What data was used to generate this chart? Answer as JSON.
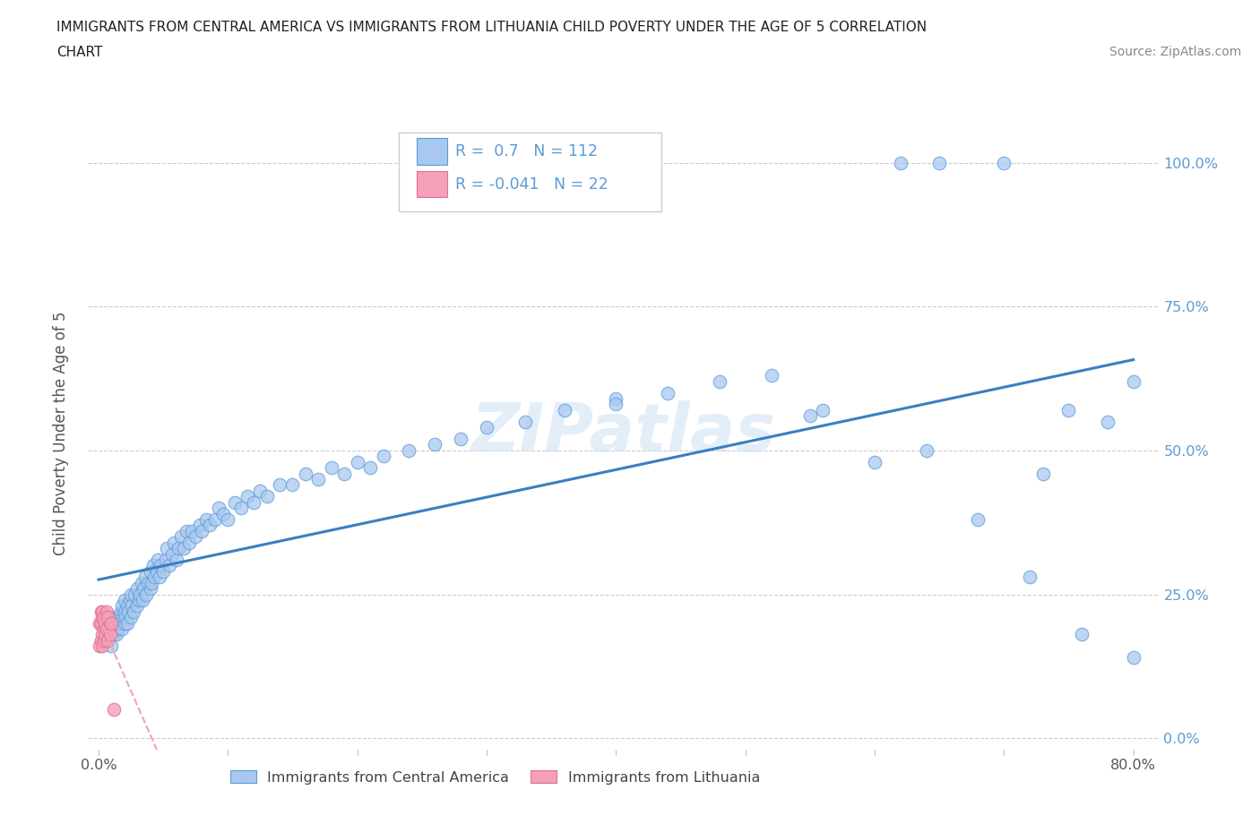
{
  "title_line1": "IMMIGRANTS FROM CENTRAL AMERICA VS IMMIGRANTS FROM LITHUANIA CHILD POVERTY UNDER THE AGE OF 5 CORRELATION",
  "title_line2": "CHART",
  "source_text": "Source: ZipAtlas.com",
  "ylabel": "Child Poverty Under the Age of 5",
  "R_blue": 0.7,
  "N_blue": 112,
  "R_pink": -0.041,
  "N_pink": 22,
  "color_blue": "#a8c8f0",
  "color_pink": "#f4a0b8",
  "edge_blue": "#5b9bd5",
  "edge_pink": "#e07090",
  "line_blue": "#3a7fc1",
  "line_pink": "#f4a0b8",
  "text_blue": "#5b9bd5",
  "watermark": "ZIPatlas",
  "legend_label_blue": "Immigrants from Central America",
  "legend_label_pink": "Immigrants from Lithuania",
  "blue_x": [
    0.005,
    0.007,
    0.008,
    0.009,
    0.01,
    0.01,
    0.01,
    0.012,
    0.013,
    0.014,
    0.015,
    0.015,
    0.016,
    0.017,
    0.018,
    0.018,
    0.019,
    0.02,
    0.02,
    0.02,
    0.021,
    0.022,
    0.022,
    0.023,
    0.024,
    0.025,
    0.025,
    0.026,
    0.027,
    0.028,
    0.03,
    0.03,
    0.031,
    0.032,
    0.033,
    0.034,
    0.035,
    0.036,
    0.037,
    0.038,
    0.04,
    0.04,
    0.041,
    0.042,
    0.043,
    0.045,
    0.046,
    0.047,
    0.048,
    0.05,
    0.052,
    0.053,
    0.055,
    0.057,
    0.058,
    0.06,
    0.062,
    0.064,
    0.066,
    0.068,
    0.07,
    0.072,
    0.075,
    0.078,
    0.08,
    0.083,
    0.086,
    0.09,
    0.093,
    0.096,
    0.1,
    0.105,
    0.11,
    0.115,
    0.12,
    0.125,
    0.13,
    0.14,
    0.15,
    0.16,
    0.17,
    0.18,
    0.19,
    0.2,
    0.21,
    0.22,
    0.24,
    0.26,
    0.28,
    0.3,
    0.33,
    0.36,
    0.4,
    0.44,
    0.48,
    0.52,
    0.56,
    0.6,
    0.64,
    0.68,
    0.72,
    0.76,
    0.8,
    0.4,
    0.55,
    0.62,
    0.65,
    0.7,
    0.73,
    0.75,
    0.78,
    0.8
  ],
  "blue_y": [
    0.17,
    0.19,
    0.18,
    0.2,
    0.16,
    0.19,
    0.21,
    0.18,
    0.2,
    0.18,
    0.19,
    0.21,
    0.2,
    0.22,
    0.19,
    0.23,
    0.21,
    0.2,
    0.22,
    0.24,
    0.21,
    0.2,
    0.23,
    0.22,
    0.24,
    0.21,
    0.25,
    0.23,
    0.22,
    0.25,
    0.23,
    0.26,
    0.24,
    0.25,
    0.27,
    0.24,
    0.26,
    0.28,
    0.25,
    0.27,
    0.26,
    0.29,
    0.27,
    0.3,
    0.28,
    0.29,
    0.31,
    0.28,
    0.3,
    0.29,
    0.31,
    0.33,
    0.3,
    0.32,
    0.34,
    0.31,
    0.33,
    0.35,
    0.33,
    0.36,
    0.34,
    0.36,
    0.35,
    0.37,
    0.36,
    0.38,
    0.37,
    0.38,
    0.4,
    0.39,
    0.38,
    0.41,
    0.4,
    0.42,
    0.41,
    0.43,
    0.42,
    0.44,
    0.44,
    0.46,
    0.45,
    0.47,
    0.46,
    0.48,
    0.47,
    0.49,
    0.5,
    0.51,
    0.52,
    0.54,
    0.55,
    0.57,
    0.59,
    0.6,
    0.62,
    0.63,
    0.57,
    0.48,
    0.5,
    0.38,
    0.28,
    0.18,
    0.14,
    0.58,
    0.56,
    1.0,
    1.0,
    1.0,
    0.46,
    0.57,
    0.55,
    0.62
  ],
  "pink_x": [
    0.001,
    0.001,
    0.002,
    0.002,
    0.002,
    0.003,
    0.003,
    0.003,
    0.003,
    0.004,
    0.004,
    0.004,
    0.005,
    0.005,
    0.006,
    0.006,
    0.007,
    0.007,
    0.008,
    0.009,
    0.01,
    0.012
  ],
  "pink_y": [
    0.2,
    0.16,
    0.2,
    0.17,
    0.22,
    0.18,
    0.21,
    0.16,
    0.22,
    0.19,
    0.21,
    0.17,
    0.2,
    0.18,
    0.19,
    0.22,
    0.17,
    0.21,
    0.19,
    0.18,
    0.2,
    0.05
  ]
}
